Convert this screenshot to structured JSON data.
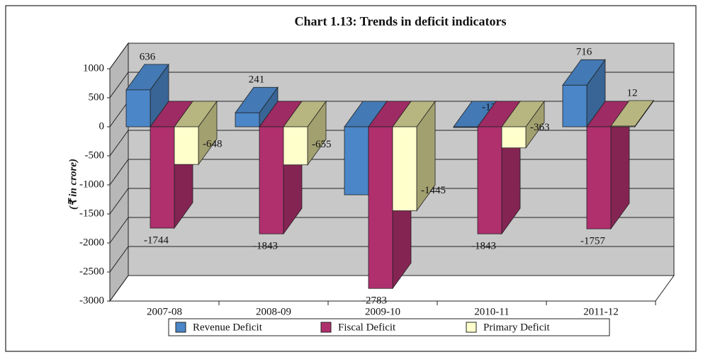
{
  "chart_data": {
    "type": "bar3d",
    "title": "Chart 1.13: Trends in deficit indicators",
    "y_label": "(₹ in crore)",
    "categories": [
      "2007-08",
      "2008-09",
      "2009-10",
      "2010-11",
      "2011-12"
    ],
    "series": [
      {
        "name": "Revenue Deficit",
        "color": "#4a86c8",
        "values": [
          636,
          241,
          -1171,
          -13,
          716
        ]
      },
      {
        "name": "Fiscal Deficit",
        "color": "#b0306e",
        "values": [
          -1744,
          -1843,
          -2783,
          -1843,
          -1757
        ]
      },
      {
        "name": "Primary Deficit",
        "color": "#ffffcc",
        "values": [
          -648,
          -655,
          -1445,
          -363,
          12
        ]
      }
    ],
    "ylim": [
      -3000,
      1000
    ],
    "yticks": [
      1000,
      500,
      0,
      -500,
      -1000,
      -1500,
      -2000,
      -2500,
      -3000
    ],
    "grid": true,
    "legend": "bottom"
  }
}
